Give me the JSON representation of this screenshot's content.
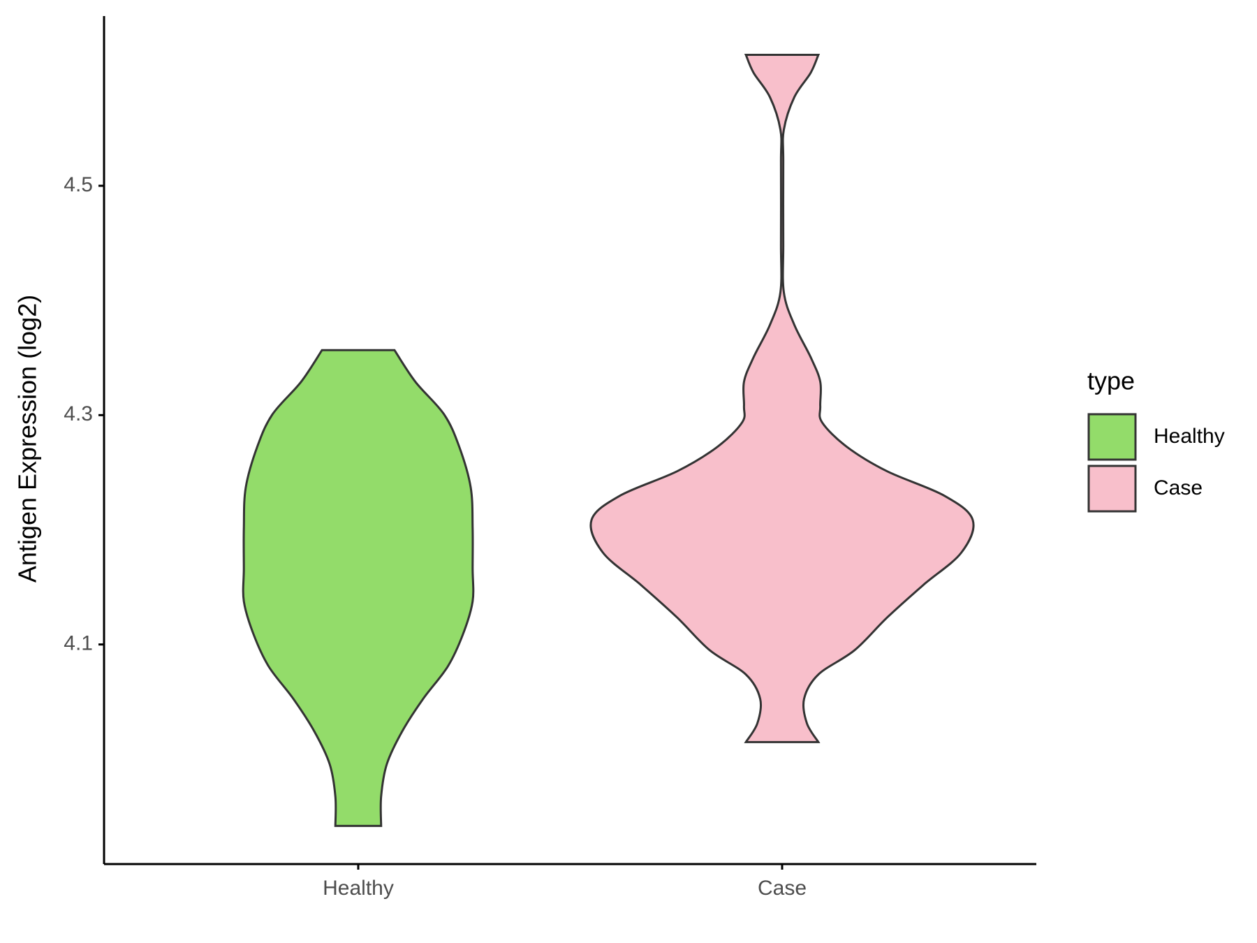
{
  "chart_data": {
    "type": "violin",
    "y_label": "Antigen Expression (log2)",
    "legend_title": "type",
    "categories": [
      "Healthy",
      "Case"
    ],
    "ylim": [
      3.9085,
      4.648
    ],
    "yticks": [
      4.1,
      4.3,
      4.5
    ],
    "series": [
      {
        "name": "Healthy",
        "color": "#93dc6a",
        "y": [
          4.3567,
          4.329,
          4.3007,
          4.2723,
          4.2369,
          4.2014,
          4.166,
          4.1376,
          4.1092,
          4.0809,
          4.0525,
          4.0241,
          3.9957,
          3.9674,
          3.9418
        ],
        "width": [
          0.19,
          0.3,
          0.45,
          0.53,
          0.59,
          0.6,
          0.6,
          0.6,
          0.55,
          0.47,
          0.34,
          0.23,
          0.15,
          0.12,
          0.12
        ]
      },
      {
        "name": "Case",
        "color": "#f8bfcb",
        "y": [
          4.6142,
          4.5986,
          4.5773,
          4.5489,
          4.5206,
          4.4496,
          4.4071,
          4.3787,
          4.3504,
          4.3291,
          4.3078,
          4.2936,
          4.2723,
          4.2511,
          4.2298,
          4.2085,
          4.1801,
          4.1518,
          4.1234,
          4.095,
          4.0738,
          4.0525,
          4.0312,
          4.0149
        ],
        "width": [
          0.19,
          0.15,
          0.064,
          0.009,
          0.006,
          0.006,
          0.009,
          0.064,
          0.15,
          0.2,
          0.2,
          0.21,
          0.34,
          0.55,
          0.85,
          1.0,
          0.94,
          0.74,
          0.55,
          0.38,
          0.19,
          0.115,
          0.13,
          0.19
        ]
      }
    ]
  }
}
